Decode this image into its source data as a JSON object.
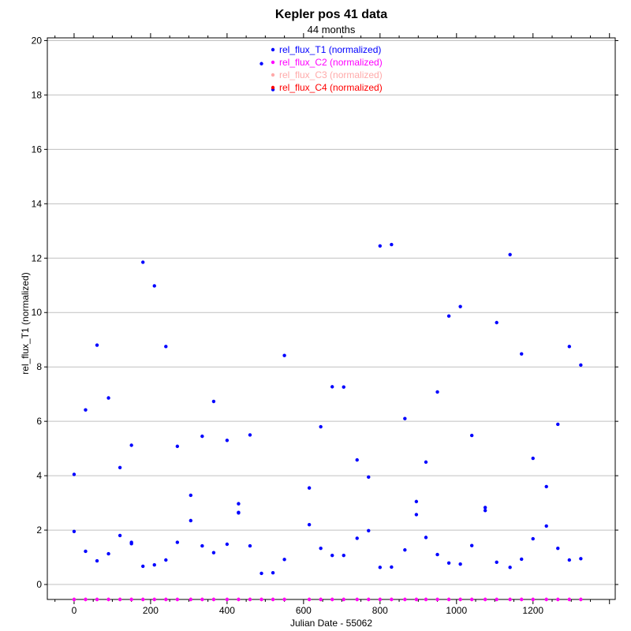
{
  "chart_data": {
    "type": "scatter",
    "title": "Kepler pos 41 data",
    "subtitle": "44 months",
    "xlabel": "Julian Date - 55062",
    "ylabel": "rel_flux_T1 (normalized)",
    "xlim": [
      -70,
      1415
    ],
    "ylim": [
      -0.55,
      20.1
    ],
    "xticks": [
      0,
      200,
      400,
      600,
      800,
      1000,
      1200
    ],
    "yticks": [
      0,
      2,
      4,
      6,
      8,
      10,
      12,
      14,
      16,
      18,
      20
    ],
    "grid": "horizontal",
    "legend_position": "top-center",
    "series": [
      {
        "name": "rel_flux_T1 (normalized)",
        "color": "#0000ff",
        "x": [
          0,
          0,
          30,
          30,
          60,
          60,
          90,
          90,
          120,
          120,
          150,
          150,
          150,
          180,
          180,
          210,
          210,
          240,
          240,
          270,
          270,
          305,
          305,
          335,
          335,
          365,
          365,
          400,
          400,
          430,
          430,
          430,
          460,
          460,
          490,
          490,
          520,
          520,
          550,
          550,
          615,
          615,
          645,
          645,
          675,
          675,
          705,
          705,
          740,
          740,
          770,
          770,
          800,
          800,
          830,
          830,
          865,
          865,
          895,
          895,
          920,
          920,
          950,
          950,
          980,
          980,
          1010,
          1010,
          1040,
          1040,
          1075,
          1075,
          1105,
          1105,
          1140,
          1140,
          1170,
          1170,
          1200,
          1200,
          1235,
          1235,
          1265,
          1265,
          1295,
          1295,
          1325,
          1325
        ],
        "y": [
          4.05,
          1.95,
          6.42,
          1.22,
          8.8,
          0.87,
          6.86,
          1.13,
          4.3,
          1.8,
          5.12,
          1.55,
          1.5,
          11.85,
          0.67,
          10.98,
          0.72,
          8.75,
          0.9,
          5.08,
          1.55,
          3.28,
          2.35,
          5.45,
          1.42,
          6.73,
          1.17,
          5.3,
          1.48,
          2.97,
          2.63,
          2.65,
          5.5,
          1.42,
          19.15,
          0.41,
          18.2,
          0.43,
          8.42,
          0.92,
          3.55,
          2.2,
          5.8,
          1.33,
          7.27,
          1.07,
          7.26,
          1.07,
          4.58,
          1.7,
          3.95,
          1.98,
          12.45,
          0.63,
          12.5,
          0.64,
          6.1,
          1.27,
          3.05,
          2.57,
          4.5,
          1.73,
          7.08,
          1.1,
          9.87,
          0.79,
          10.22,
          0.75,
          5.48,
          1.43,
          2.83,
          2.72,
          9.63,
          0.82,
          12.13,
          0.63,
          8.48,
          0.93,
          4.64,
          1.68,
          3.6,
          2.15,
          5.89,
          1.33,
          8.75,
          0.9,
          8.07,
          0.95
        ]
      },
      {
        "name": "rel_flux_C2 (normalized)",
        "color": "#ff00ff",
        "x": [
          0,
          30,
          60,
          90,
          120,
          150,
          180,
          210,
          240,
          270,
          305,
          335,
          365,
          400,
          430,
          460,
          490,
          520,
          550,
          615,
          645,
          675,
          705,
          740,
          770,
          800,
          830,
          865,
          895,
          920,
          950,
          980,
          1010,
          1040,
          1075,
          1105,
          1140,
          1170,
          1200,
          1235,
          1265,
          1295,
          1325
        ],
        "y": [
          -0.55,
          -0.55,
          -0.55,
          -0.55,
          -0.55,
          -0.55,
          -0.55,
          -0.55,
          -0.55,
          -0.55,
          -0.55,
          -0.55,
          -0.55,
          -0.55,
          -0.55,
          -0.55,
          -0.55,
          -0.55,
          -0.55,
          -0.55,
          -0.55,
          -0.55,
          -0.55,
          -0.55,
          -0.55,
          -0.55,
          -0.55,
          -0.55,
          -0.55,
          -0.55,
          -0.55,
          -0.55,
          -0.55,
          -0.55,
          -0.55,
          -0.55,
          -0.55,
          -0.55,
          -0.55,
          -0.55,
          -0.55,
          -0.55,
          -0.55
        ]
      },
      {
        "name": "rel_flux_C3 (normalized)",
        "color": "#ffaaaa",
        "x": [
          0,
          30,
          60,
          90,
          120,
          150,
          180,
          210,
          240,
          270,
          305,
          335,
          365,
          400,
          430,
          460,
          490,
          520,
          550,
          615,
          645,
          675,
          705,
          740,
          770,
          800,
          830,
          865,
          895,
          920,
          950,
          980,
          1010,
          1040,
          1075,
          1105,
          1140,
          1170,
          1200,
          1235,
          1265,
          1295,
          1325
        ],
        "y": [
          -0.55,
          -0.55,
          -0.55,
          -0.55,
          -0.55,
          -0.55,
          -0.55,
          -0.55,
          -0.55,
          -0.55,
          -0.55,
          -0.55,
          -0.55,
          -0.55,
          -0.55,
          -0.55,
          -0.55,
          -0.55,
          -0.55,
          -0.55,
          -0.55,
          -0.55,
          -0.55,
          -0.55,
          -0.55,
          -0.55,
          -0.55,
          -0.55,
          -0.55,
          -0.55,
          -0.55,
          -0.55,
          -0.55,
          -0.55,
          -0.55,
          -0.55,
          -0.55,
          -0.55,
          -0.55,
          -0.55,
          -0.55,
          -0.55,
          -0.55
        ]
      },
      {
        "name": "rel_flux_C4 (normalized)",
        "color": "#ff0000",
        "x": [
          0,
          30,
          60,
          90,
          120,
          150,
          180,
          210,
          240,
          270,
          305,
          335,
          365,
          400,
          430,
          460,
          490,
          520,
          550,
          615,
          645,
          675,
          705,
          740,
          770,
          800,
          830,
          865,
          895,
          920,
          950,
          980,
          1010,
          1040,
          1075,
          1105,
          1140,
          1170,
          1200,
          1235,
          1265,
          1295,
          1325
        ],
        "y": [
          -0.55,
          -0.55,
          -0.55,
          -0.55,
          -0.55,
          -0.55,
          -0.55,
          -0.55,
          -0.55,
          -0.55,
          -0.55,
          -0.55,
          -0.55,
          -0.55,
          -0.55,
          -0.55,
          -0.55,
          -0.55,
          -0.55,
          -0.55,
          -0.55,
          -0.55,
          -0.55,
          -0.55,
          -0.55,
          -0.55,
          -0.55,
          -0.55,
          -0.55,
          -0.55,
          -0.55,
          -0.55,
          -0.55,
          -0.55,
          -0.55,
          -0.55,
          -0.55,
          -0.55,
          -0.55,
          -0.55,
          -0.55,
          -0.55,
          -0.55
        ]
      }
    ]
  }
}
